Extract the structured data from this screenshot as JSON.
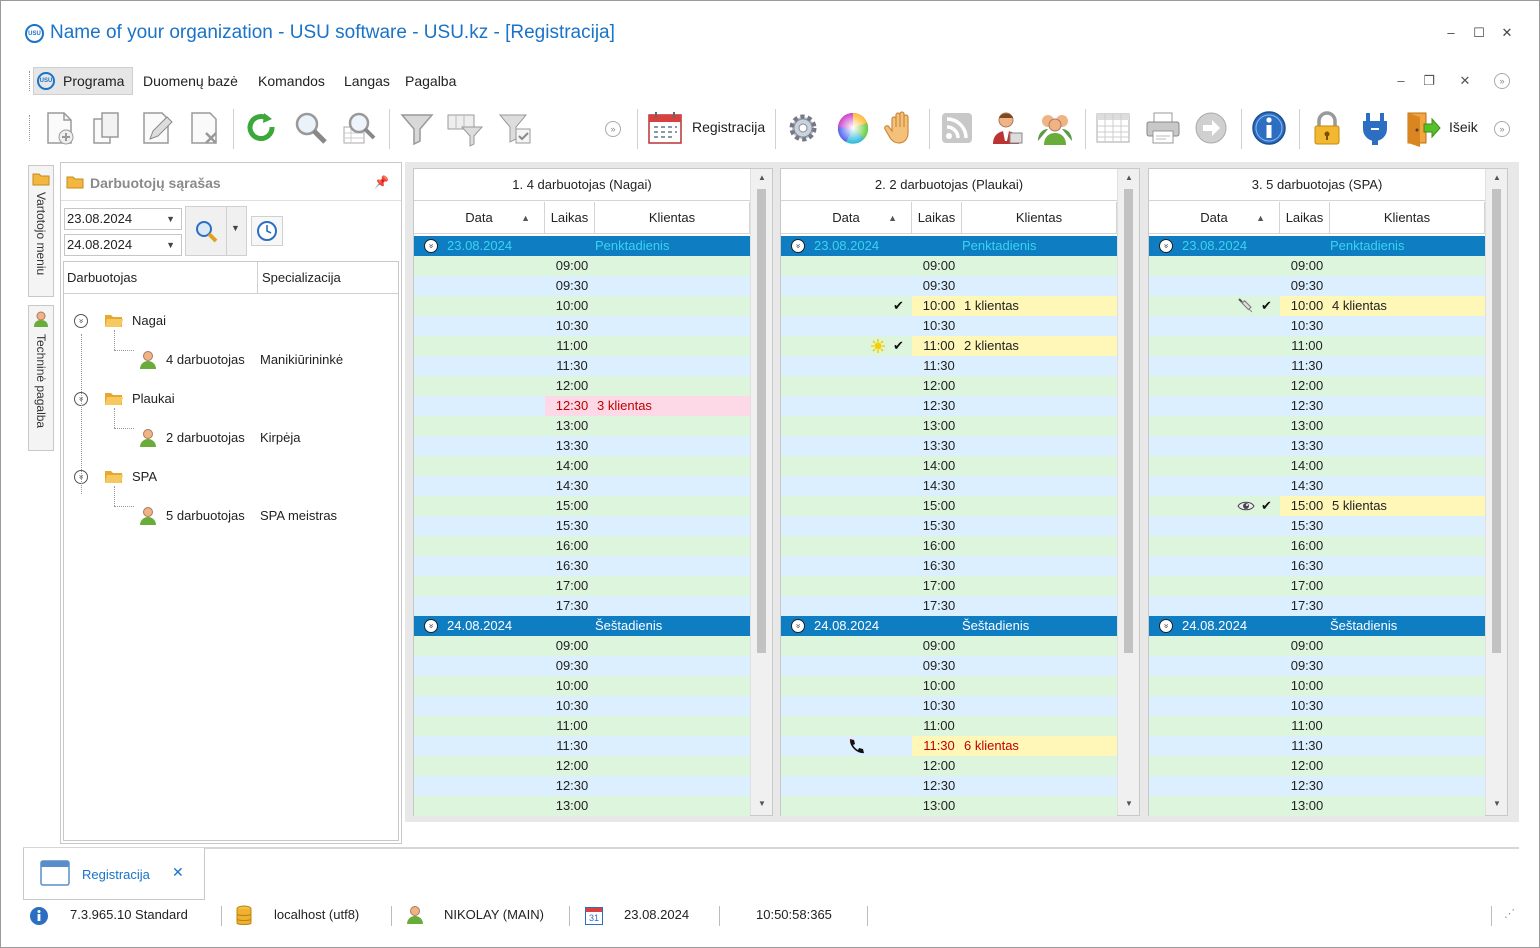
{
  "window": {
    "title": "Name of your organization - USU software - USU.kz - [Registracija]",
    "logo": "USU",
    "minimize": "–",
    "maximize": "☐",
    "close": "✕"
  },
  "menu": {
    "items": [
      "Programa",
      "Duomenų bazė",
      "Komandos",
      "Langas",
      "Pagalba"
    ],
    "mdi_min": "–",
    "mdi_restore": "❐",
    "mdi_close": "✕"
  },
  "toolbar": {
    "registracija_label": "Registracija",
    "exit_label": "Išeik"
  },
  "vtabs": [
    "Vartotojo meniu",
    "Techninė pagalba"
  ],
  "left_panel": {
    "title": "Darbuotojų sąrašas",
    "date_from": "23.08.2024",
    "date_to": "24.08.2024",
    "columns": [
      "Darbuotojas",
      "Specializacija"
    ],
    "groups": [
      {
        "name": "Nagai",
        "employee": "4 darbuotojas",
        "spec": "Manikiūrininkė"
      },
      {
        "name": "Plaukai",
        "employee": "2 darbuotojas",
        "spec": "Kirpėja"
      },
      {
        "name": "SPA",
        "employee": "5 darbuotojas",
        "spec": "SPA meistras"
      }
    ]
  },
  "schedule": {
    "col_data": "Data",
    "col_laikas": "Laikas",
    "col_klientas": "Klientas",
    "days": [
      {
        "date": "23.08.2024",
        "name": "Penktadienis",
        "times": [
          "09:00",
          "09:30",
          "10:00",
          "10:30",
          "11:00",
          "11:30",
          "12:00",
          "12:30",
          "13:00",
          "13:30",
          "14:00",
          "14:30",
          "15:00",
          "15:30",
          "16:00",
          "16:30",
          "17:00",
          "17:30"
        ]
      },
      {
        "date": "24.08.2024",
        "name": "Šeštadienis",
        "times": [
          "09:00",
          "09:30",
          "10:00",
          "10:30",
          "11:00",
          "11:30",
          "12:00",
          "12:30",
          "13:00"
        ]
      }
    ],
    "panes": [
      {
        "title": "1. 4 darbuotojas (Nagai)",
        "bookings": [
          {
            "day": 0,
            "time": "12:30",
            "client": "3 klientas",
            "style": "pink",
            "check": false,
            "icon": ""
          }
        ]
      },
      {
        "title": "2. 2 darbuotojas (Plaukai)",
        "bookings": [
          {
            "day": 0,
            "time": "10:00",
            "client": "1 klientas",
            "style": "yellow",
            "check": true,
            "icon": ""
          },
          {
            "day": 0,
            "time": "11:00",
            "client": "2 klientas",
            "style": "yellow",
            "check": true,
            "icon": "sun-icon"
          },
          {
            "day": 1,
            "time": "11:30",
            "client": "6 klientas",
            "style": "yellow-red",
            "check": false,
            "icon": "phone-icon"
          }
        ]
      },
      {
        "title": "3. 5 darbuotojas (SPA)",
        "bookings": [
          {
            "day": 0,
            "time": "10:00",
            "client": "4 klientas",
            "style": "yellow",
            "check": true,
            "icon": "syringe-icon"
          },
          {
            "day": 0,
            "time": "15:00",
            "client": "5 klientas",
            "style": "yellow",
            "check": true,
            "icon": "eye-icon"
          }
        ]
      }
    ]
  },
  "bottom_tab": {
    "label": "Registracija",
    "close": "✕"
  },
  "status": {
    "version": "7.3.965.10 Standard",
    "db": "localhost (utf8)",
    "user": "NIKOLAY (MAIN)",
    "date": "23.08.2024",
    "time": "10:50:58:365",
    "calendar_day": "31"
  },
  "colors": {
    "accent": "#1a73c8",
    "day_row": "#0f7dc2",
    "row_green": "#ddf5dd",
    "row_blue": "#dcefff",
    "booking_yellow": "#fff7b8",
    "booking_pink": "#fdd8e6",
    "booking_red_text": "#c00000"
  }
}
